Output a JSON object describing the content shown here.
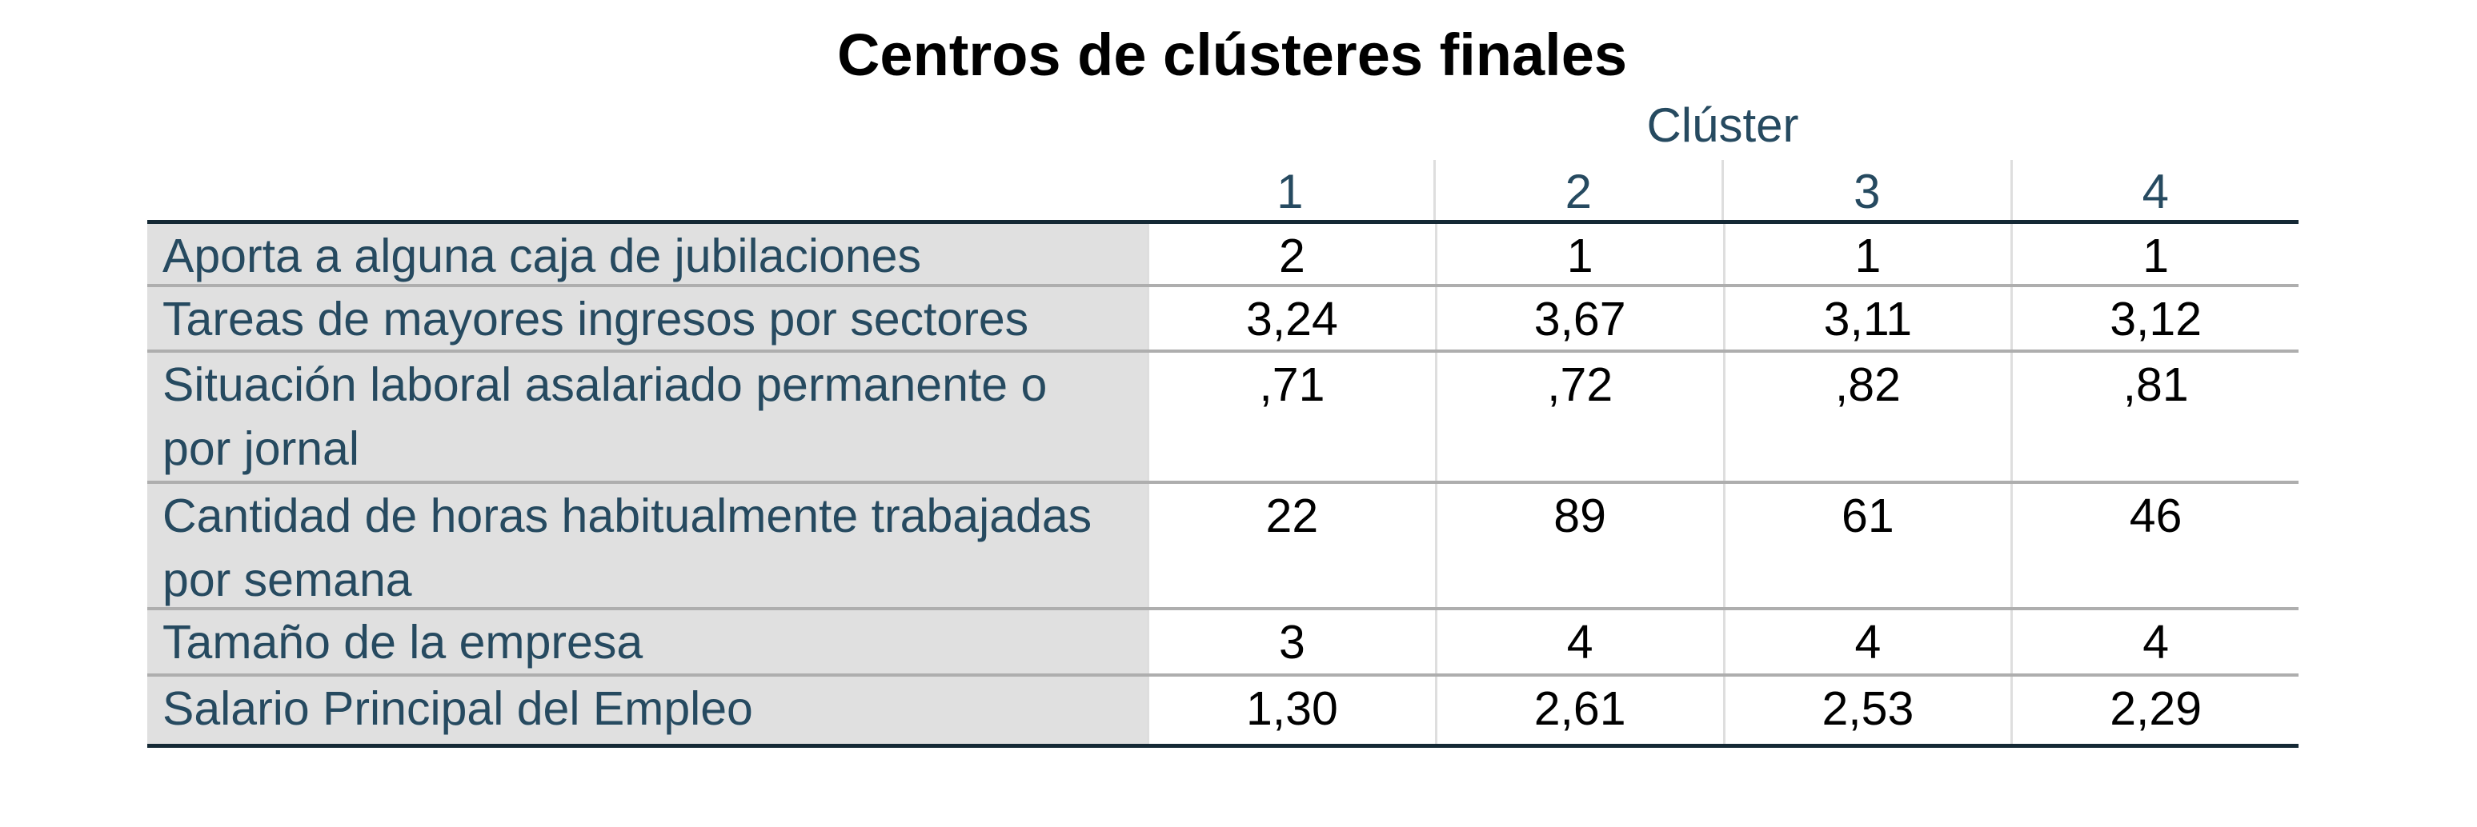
{
  "title": "Centros de clústeres finales",
  "table": {
    "spanning_header": "Clúster",
    "columns": [
      "1",
      "2",
      "3",
      "4"
    ],
    "rows": [
      {
        "label": "Aporta a alguna caja de jubilaciones",
        "values": [
          "2",
          "1",
          "1",
          "1"
        ]
      },
      {
        "label": "Tareas de mayores ingresos por sectores",
        "values": [
          "3,24",
          "3,67",
          "3,11",
          "3,12"
        ]
      },
      {
        "label": "Situación laboral asalariado permanente o por jornal",
        "values": [
          ",71",
          ",72",
          ",82",
          ",81"
        ]
      },
      {
        "label": "Cantidad de horas habitualmente trabajadas por semana",
        "values": [
          "22",
          "89",
          "61",
          "46"
        ]
      },
      {
        "label": "Tamaño de la empresa",
        "values": [
          "3",
          "4",
          "4",
          "4"
        ]
      },
      {
        "label": "Salario Principal del Empleo",
        "values": [
          "1,30",
          "2,61",
          "2,53",
          "2,29"
        ]
      }
    ]
  },
  "colors": {
    "label_text": "#264a60",
    "label_background": "#e0e0e0",
    "value_text": "#000000",
    "rule_dark": "#152935",
    "row_separator": "#aeaeae"
  }
}
